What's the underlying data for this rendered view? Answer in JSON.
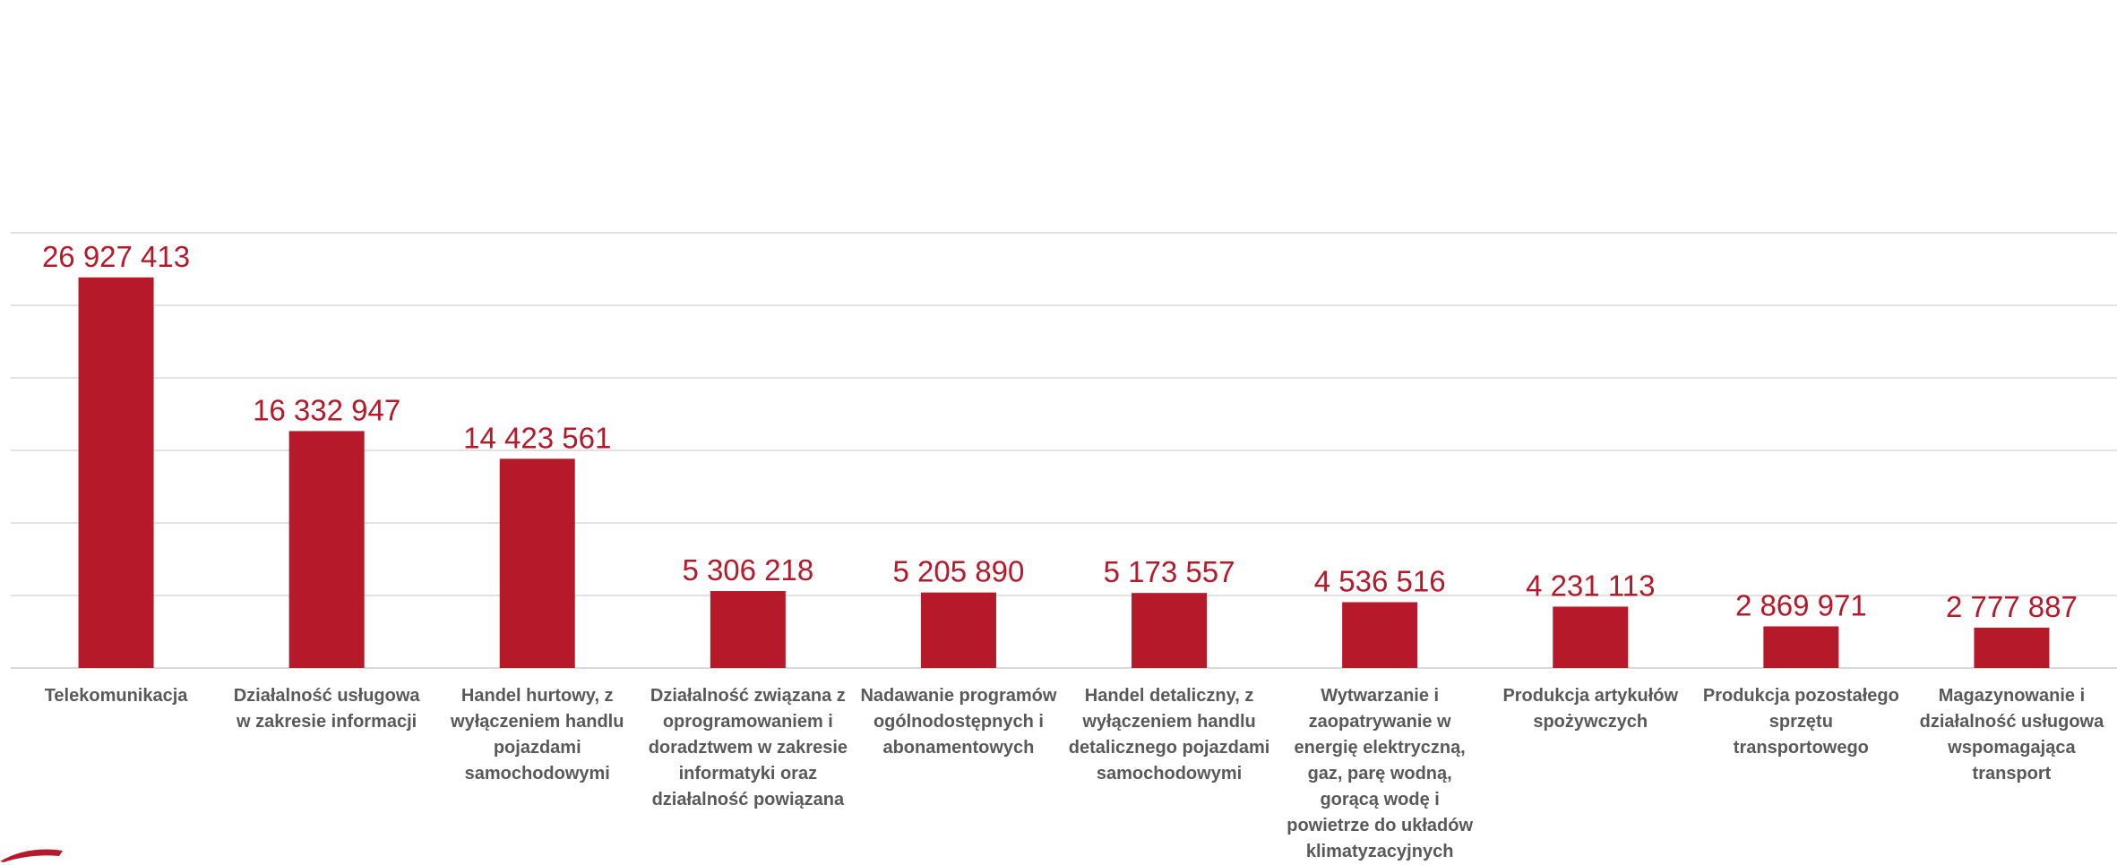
{
  "chart_data": {
    "type": "bar",
    "categories": [
      "Telekomunikacja",
      "Działalność usługowa w zakresie informacji",
      "Handel hurtowy, z wyłączeniem handlu pojazdami samochodowymi",
      "Działalność związana z oprogramowaniem i doradztwem w zakresie informatyki oraz działalność powiązana",
      "Nadawanie programów ogólnodostępnych i abonamentowych",
      "Handel detaliczny, z wyłączeniem handlu detalicznego pojazdami samochodowymi",
      "Wytwarzanie i zaopatrywanie w energię elektryczną, gaz, parę wodną, gorącą wodę i powietrze do układów klimatyzacyjnych",
      "Produkcja artykułów spożywczych",
      "Produkcja pozostałego sprzętu transportowego",
      "Magazynowanie i działalność usługowa wspomagająca transport"
    ],
    "values": [
      26927413,
      16332947,
      14423561,
      5306218,
      5205890,
      5173557,
      4536516,
      4231113,
      2869971,
      2777887
    ],
    "value_labels": [
      "26 927 413",
      "16 332 947",
      "14 423 561",
      "5 306 218",
      "5 205 890",
      "5 173 557",
      "4 536 516",
      "4 231 113",
      "2 869 971",
      "2 777 887"
    ],
    "title": "",
    "xlabel": "",
    "ylabel": "",
    "ylim": [
      0,
      30000000
    ],
    "grid": true,
    "legend": "none",
    "colors": {
      "bar": "#B5192A",
      "value_label": "#B5192A",
      "grid": "#D9D9D9",
      "axis": "#D9D9D9",
      "category_label": "#595959"
    }
  }
}
